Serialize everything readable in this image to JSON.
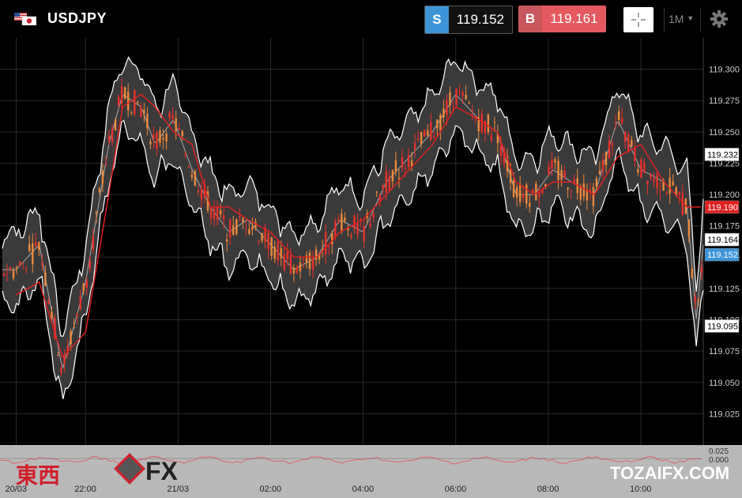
{
  "header": {
    "pair": "USDJPY",
    "sell_tag": "S",
    "sell_price": "119.152",
    "buy_tag": "B",
    "buy_price": "119.161",
    "timeframe": "1M"
  },
  "colors": {
    "sell": "#3d95d8",
    "buy": "#e45a60",
    "ma": "#e02020",
    "band_fill": "#3a3a3a",
    "band_line": "#ffffff",
    "bull": "#f08a3a",
    "bear": "#e8312c"
  },
  "chart_data": {
    "type": "line",
    "ylim": [
      119.0,
      119.325
    ],
    "y_ticks": [
      "119.025",
      "119.050",
      "119.075",
      "119.100",
      "119.125",
      "119.150",
      "119.175",
      "119.200",
      "119.225",
      "119.250",
      "119.275",
      "119.300"
    ],
    "x_ticks": [
      {
        "label": "20/03",
        "t": 0.0
      },
      {
        "label": "22:00",
        "t": 1.5
      },
      {
        "label": "21/03",
        "t": 3.5
      },
      {
        "label": "02:00",
        "t": 5.5
      },
      {
        "label": "04:00",
        "t": 7.5
      },
      {
        "label": "06:00",
        "t": 9.5
      },
      {
        "label": "08:00",
        "t": 11.5
      },
      {
        "label": "10:00",
        "t": 13.5
      }
    ],
    "price_labels": [
      {
        "value": "119.232",
        "y": 119.232,
        "kind": "band"
      },
      {
        "value": "119.190",
        "y": 119.19,
        "kind": "ma"
      },
      {
        "value": "119.164",
        "y": 119.164,
        "kind": "band"
      },
      {
        "value": "119.152",
        "y": 119.152,
        "kind": "sell"
      },
      {
        "value": "119.095",
        "y": 119.095,
        "kind": "band"
      }
    ],
    "series": [
      {
        "values": [
          [
            0,
            119.12
          ],
          [
            0.5,
            119.13
          ],
          [
            1.0,
            119.07
          ],
          [
            1.5,
            119.09
          ],
          [
            2.0,
            119.2
          ],
          [
            2.3,
            119.27
          ],
          [
            2.7,
            119.28
          ],
          [
            3.0,
            119.27
          ],
          [
            3.4,
            119.25
          ],
          [
            3.8,
            119.24
          ],
          [
            4.2,
            119.19
          ],
          [
            4.6,
            119.19
          ],
          [
            5.0,
            119.18
          ],
          [
            5.5,
            119.17
          ],
          [
            6.0,
            119.15
          ],
          [
            6.5,
            119.15
          ],
          [
            7.0,
            119.17
          ],
          [
            7.5,
            119.18
          ],
          [
            8.0,
            119.2
          ],
          [
            8.5,
            119.22
          ],
          [
            9.0,
            119.24
          ],
          [
            9.5,
            119.27
          ],
          [
            10.0,
            119.26
          ],
          [
            10.4,
            119.25
          ],
          [
            10.8,
            119.21
          ],
          [
            11.2,
            119.2
          ],
          [
            11.6,
            119.21
          ],
          [
            12.0,
            119.21
          ],
          [
            12.5,
            119.2
          ],
          [
            13.0,
            119.23
          ],
          [
            13.5,
            119.24
          ],
          [
            14.0,
            119.21
          ],
          [
            14.5,
            119.19
          ],
          [
            14.8,
            119.19
          ]
        ]
      },
      {
        "values": [
          [
            0,
            119.14
          ],
          [
            0.5,
            119.16
          ],
          [
            1.0,
            119.06
          ],
          [
            1.5,
            119.13
          ],
          [
            2.0,
            119.24
          ],
          [
            2.3,
            119.28
          ],
          [
            2.7,
            119.27
          ],
          [
            3.0,
            119.24
          ],
          [
            3.4,
            119.26
          ],
          [
            3.8,
            119.22
          ],
          [
            4.2,
            119.19
          ],
          [
            4.6,
            119.17
          ],
          [
            5.0,
            119.18
          ],
          [
            5.5,
            119.16
          ],
          [
            6.0,
            119.14
          ],
          [
            6.5,
            119.15
          ],
          [
            7.0,
            119.18
          ],
          [
            7.5,
            119.17
          ],
          [
            8.0,
            119.21
          ],
          [
            8.5,
            119.23
          ],
          [
            9.0,
            119.25
          ],
          [
            9.5,
            119.28
          ],
          [
            10.0,
            119.26
          ],
          [
            10.4,
            119.25
          ],
          [
            10.8,
            119.2
          ],
          [
            11.2,
            119.2
          ],
          [
            11.6,
            119.22
          ],
          [
            12.0,
            119.21
          ],
          [
            12.5,
            119.2
          ],
          [
            13.0,
            119.26
          ],
          [
            13.5,
            119.22
          ],
          [
            14.0,
            119.21
          ],
          [
            14.5,
            119.19
          ],
          [
            14.7,
            119.1
          ],
          [
            14.85,
            119.16
          ]
        ]
      }
    ],
    "indicator_ticks": [
      "0.025",
      "0.000"
    ]
  },
  "footer": {
    "brand": "東西",
    "fx": "FX",
    "watermark": "TOZAIFX.COM"
  }
}
